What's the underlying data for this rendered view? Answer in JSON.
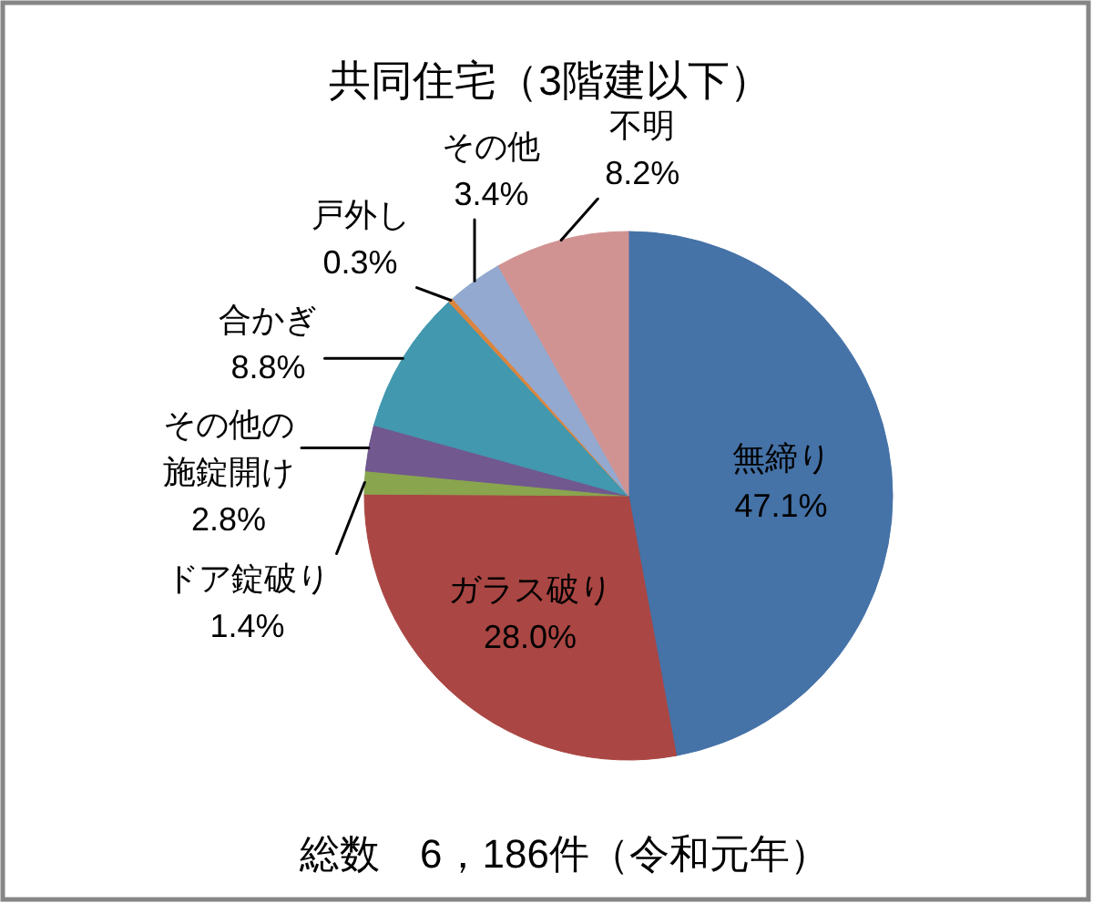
{
  "chart_data": {
    "type": "pie",
    "title": "共同住宅（3階建以下）",
    "categories": [
      "無締り",
      "ガラス破り",
      "ドア錠破り",
      "その他の施錠開け",
      "合かぎ",
      "戸外し",
      "その他",
      "不明"
    ],
    "values": [
      47.1,
      28.0,
      1.4,
      2.8,
      8.8,
      0.3,
      3.4,
      8.2
    ],
    "colors": [
      "#4572a7",
      "#aa4643",
      "#89a54e",
      "#71588f",
      "#4198af",
      "#db843d",
      "#93a9cf",
      "#d19392"
    ],
    "value_labels": [
      "47.1%",
      "28.0%",
      "1.4%",
      "2.8%",
      "8.8%",
      "0.3%",
      "3.4%",
      "8.2%"
    ],
    "annotations": [
      "総数　6，186件（令和元年）"
    ]
  }
}
